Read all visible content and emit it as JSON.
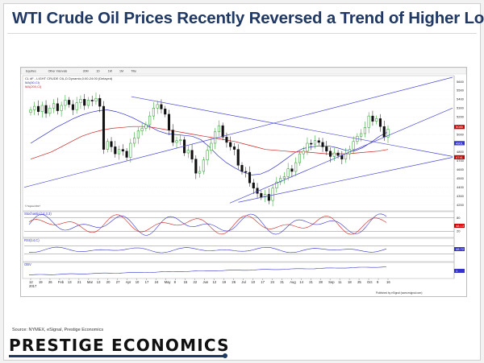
{
  "slide": {
    "title": "WTI Crude Oil Prices Recently Reversed a Trend of Higher Lows",
    "source": "Source: NYMEX, eSignal, Prestige Economics",
    "brand": "PRESTIGE ECONOMICS"
  },
  "chart_window": {
    "toolbar_items": [
      "Equities",
      "Other Intervals",
      "30M",
      "1D",
      "1W",
      "1M",
      "Title"
    ],
    "published": "Published by eSignal (www.esignal.com)",
    "legend_main": "CL #F - LIGHT CRUDE OIL,D Dynamic,0:00-24:00 (Delayed)",
    "legend_ma1": "MA(50,Cl)",
    "legend_ma2": "MA(200,Cl)",
    "stoch_label": "Stochastic(14,3,3)",
    "rsi_label": "RSI(14,C)",
    "obv_label": "OBV",
    "watermark": "© Signal 2017",
    "chart_data": {
      "type": "candlestick",
      "price_ylim": [
        41.5,
        56.5
      ],
      "price_ticks": [
        42,
        43,
        44,
        45,
        46,
        47,
        48,
        49,
        50,
        51,
        52,
        53,
        54,
        55,
        56
      ],
      "price_tick_labels": [
        "4200",
        "4300",
        "4400",
        "4500",
        "4600",
        "4700",
        "4800",
        "4900",
        "5000",
        "5100",
        "5200",
        "5300",
        "5400",
        "5500",
        "5600"
      ],
      "last_price_marker": "5085",
      "ma_markers": [
        "4901",
        "4741"
      ],
      "x_labels": [
        "12",
        "19",
        "26",
        "Feb",
        "13",
        "21",
        "Mar",
        "13",
        "20",
        "27",
        "Apr",
        "10",
        "17",
        "24",
        "May",
        "8",
        "15",
        "22",
        "Jun",
        "12",
        "19",
        "26",
        "Jul",
        "10",
        "17",
        "24",
        "31",
        "Aug",
        "14",
        "21",
        "28",
        "Sep",
        "11",
        "18",
        "25",
        "Oct",
        "9",
        "16"
      ],
      "year_label": "2017",
      "close_series": [
        52.8,
        53.2,
        52.6,
        53.3,
        52.4,
        53.0,
        53.5,
        52.7,
        53.3,
        53.9,
        53.4,
        52.8,
        53.6,
        54.0,
        53.3,
        53.9,
        53.8,
        54.1,
        53.2,
        48.3,
        49.2,
        48.6,
        47.8,
        48.3,
        48.1,
        47.4,
        49.0,
        49.6,
        50.4,
        50.7,
        51.1,
        52.1,
        53.0,
        53.4,
        52.9,
        52.3,
        50.5,
        49.1,
        49.3,
        49.4,
        47.9,
        48.2,
        47.2,
        45.6,
        45.8,
        47.1,
        48.2,
        49.0,
        50.3,
        51.0,
        49.7,
        49.1,
        48.6,
        48.3,
        46.5,
        45.8,
        45.7,
        44.5,
        43.9,
        43.3,
        42.9,
        43.2,
        42.5,
        43.9,
        44.6,
        45.0,
        45.2,
        46.1,
        45.8,
        46.8,
        47.8,
        48.1,
        49.0,
        48.9,
        49.3,
        49.1,
        48.6,
        48.1,
        47.5,
        47.9,
        47.6,
        47.2,
        47.8,
        48.3,
        49.2,
        49.8,
        50.1,
        50.8,
        52.1,
        51.5,
        51.8,
        50.9,
        49.7,
        50.6
      ],
      "ma50": [
        49.0,
        49.6,
        50.2,
        50.8,
        51.3,
        51.8,
        52.2,
        52.5,
        52.7,
        52.8,
        52.6,
        52.3,
        51.9,
        51.4,
        50.9,
        50.4,
        50.1,
        50.0,
        49.9,
        49.8,
        49.4,
        48.6,
        47.6,
        46.8,
        46.2,
        45.7,
        45.4,
        45.5,
        45.9,
        46.5,
        47.2,
        47.9,
        48.4,
        48.6,
        48.7,
        48.7,
        48.5,
        48.2,
        48.1,
        48.5,
        49.1,
        49.8,
        50.3
      ],
      "ma200": [
        47.2,
        47.6,
        48.0,
        48.6,
        49.2,
        49.8,
        50.2,
        50.5,
        50.7,
        50.8,
        50.9,
        50.9,
        50.8,
        50.6,
        50.4,
        50.2,
        50.0,
        49.8,
        49.6,
        49.4,
        49.2,
        48.9,
        48.6,
        48.3,
        48.2,
        48.1,
        48.0,
        48.0,
        47.9,
        47.8,
        47.8,
        47.8,
        47.9,
        48.0,
        48.1,
        48.3
      ],
      "trendlines": [
        {
          "name": "",
          "from": [
            0,
            44.0
          ],
          "to": [
            1,
            56.5
          ]
        },
        {
          "name": "",
          "from": [
            0.25,
            54.3
          ],
          "to": [
            1,
            47.5
          ]
        },
        {
          "name": "",
          "from": [
            0.5,
            42.3
          ],
          "to": [
            1,
            47.4
          ]
        },
        {
          "name": "",
          "from": [
            0.48,
            42.2
          ],
          "to": [
            1,
            53.0
          ]
        }
      ],
      "stoch_ticks": [
        "80",
        "20"
      ],
      "stoch_marker": "48.13",
      "rsi_marker": "48.72",
      "obv_marker": "1"
    }
  }
}
